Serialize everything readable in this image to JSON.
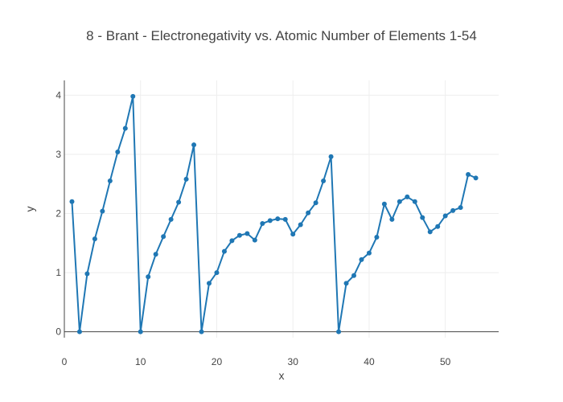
{
  "chart_data": {
    "type": "line",
    "title": "8 - Brant - Electronegativity vs. Atomic Number of Elements 1-54",
    "xlabel": "x",
    "ylabel": "y",
    "xlim": [
      0,
      57
    ],
    "ylim": [
      -0.1,
      4.25
    ],
    "xticks": [
      0,
      10,
      20,
      30,
      40,
      50
    ],
    "yticks": [
      0,
      1,
      2,
      3,
      4
    ],
    "grid": true,
    "legend": "none",
    "series": [
      {
        "color": "#1f77b4",
        "x": [
          1,
          2,
          3,
          4,
          5,
          6,
          7,
          8,
          9,
          10,
          11,
          12,
          13,
          14,
          15,
          16,
          17,
          18,
          19,
          20,
          21,
          22,
          23,
          24,
          25,
          26,
          27,
          28,
          29,
          30,
          31,
          32,
          33,
          34,
          35,
          36,
          37,
          38,
          39,
          40,
          41,
          42,
          43,
          44,
          45,
          46,
          47,
          48,
          49,
          50,
          51,
          52,
          53,
          54
        ],
        "y": [
          2.2,
          0,
          0.98,
          1.57,
          2.04,
          2.55,
          3.04,
          3.44,
          3.98,
          0,
          0.93,
          1.31,
          1.61,
          1.9,
          2.19,
          2.58,
          3.16,
          0,
          0.82,
          1.0,
          1.36,
          1.54,
          1.63,
          1.66,
          1.55,
          1.83,
          1.88,
          1.91,
          1.9,
          1.65,
          1.81,
          2.01,
          2.18,
          2.55,
          2.96,
          0,
          0.82,
          0.95,
          1.22,
          1.33,
          1.6,
          2.16,
          1.9,
          2.2,
          2.28,
          2.2,
          1.93,
          1.69,
          1.78,
          1.96,
          2.05,
          2.1,
          2.66,
          2.6
        ]
      }
    ]
  }
}
